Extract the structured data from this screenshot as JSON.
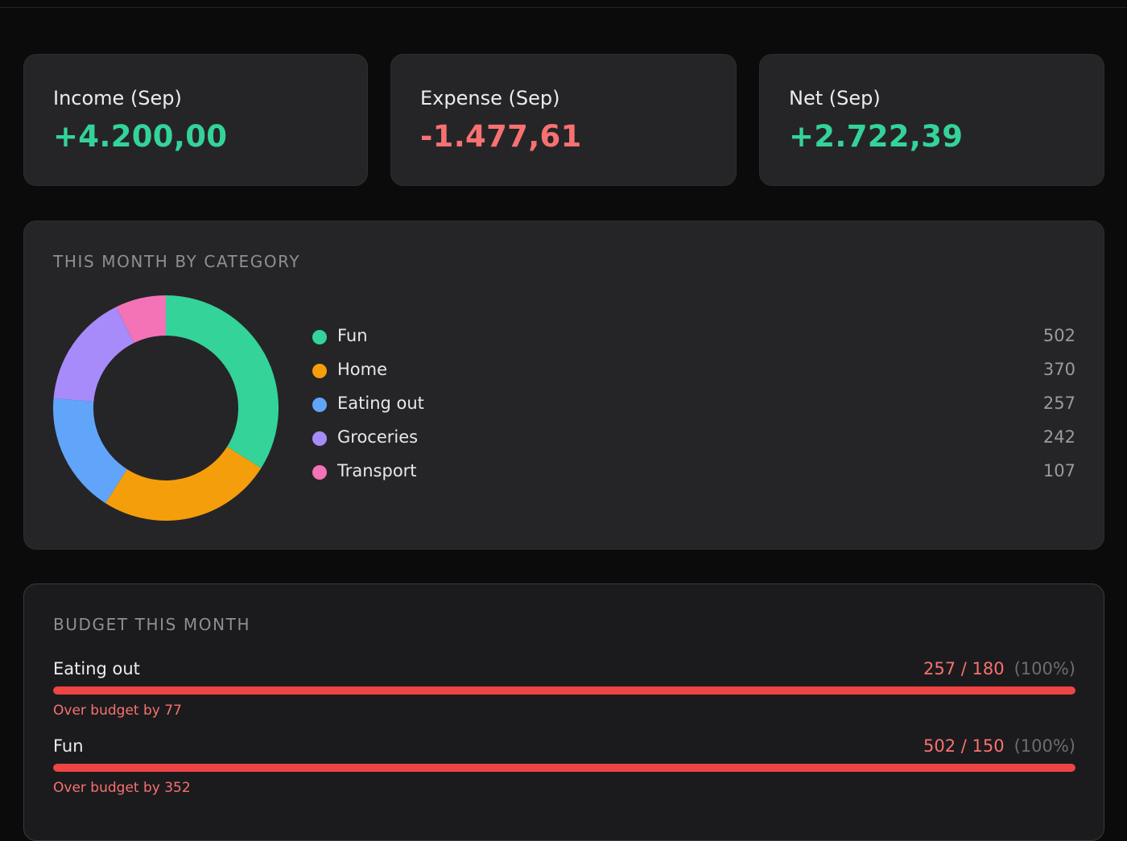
{
  "stats": [
    {
      "label": "Income (Sep)",
      "value": "+4.200,00",
      "tone": "pos"
    },
    {
      "label": "Expense (Sep)",
      "value": "-1.477,61",
      "tone": "neg"
    },
    {
      "label": "Net (Sep)",
      "value": "+2.722,39",
      "tone": "pos"
    }
  ],
  "category_panel": {
    "title": "THIS MONTH BY CATEGORY"
  },
  "chart_data": {
    "type": "pie",
    "categories": [
      "Fun",
      "Home",
      "Eating out",
      "Groceries",
      "Transport"
    ],
    "values": [
      502,
      370,
      257,
      242,
      107
    ],
    "value_labels": [
      "502",
      "370",
      "257",
      "242",
      "107"
    ],
    "colors": [
      "#34d399",
      "#f59e0b",
      "#60a5fa",
      "#a78bfa",
      "#f472b6"
    ],
    "donut": true,
    "legend": "right"
  },
  "budget_panel": {
    "title": "BUDGET THIS MONTH",
    "items": [
      {
        "name": "Eating out",
        "amount": "257 / 180",
        "percent": "(100%)",
        "fill": 1.0,
        "note": "Over budget by 77"
      },
      {
        "name": "Fun",
        "amount": "502 / 150",
        "percent": "(100%)",
        "fill": 1.0,
        "note": "Over budget by 352"
      }
    ]
  }
}
